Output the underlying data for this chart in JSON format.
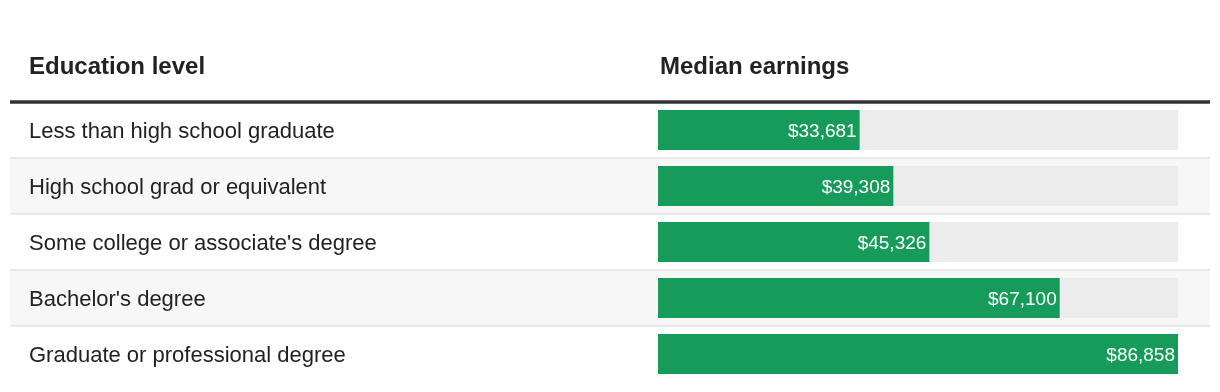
{
  "chart_data": {
    "type": "bar",
    "orientation": "horizontal",
    "ylabel": "Education level",
    "xlabel": "Median earnings",
    "categories": [
      "Less than high school graduate",
      "High school grad or equivalent",
      "Some college or associate's degree",
      "Bachelor's degree",
      "Graduate or professional degree"
    ],
    "values": [
      33681,
      39308,
      45326,
      67100,
      86858
    ],
    "value_labels": [
      "$33,681",
      "$39,308",
      "$45,326",
      "$67,100",
      "$86,858"
    ],
    "color": "#169b5b",
    "xlim": [
      0,
      86858
    ],
    "grid": false,
    "legend": false
  }
}
